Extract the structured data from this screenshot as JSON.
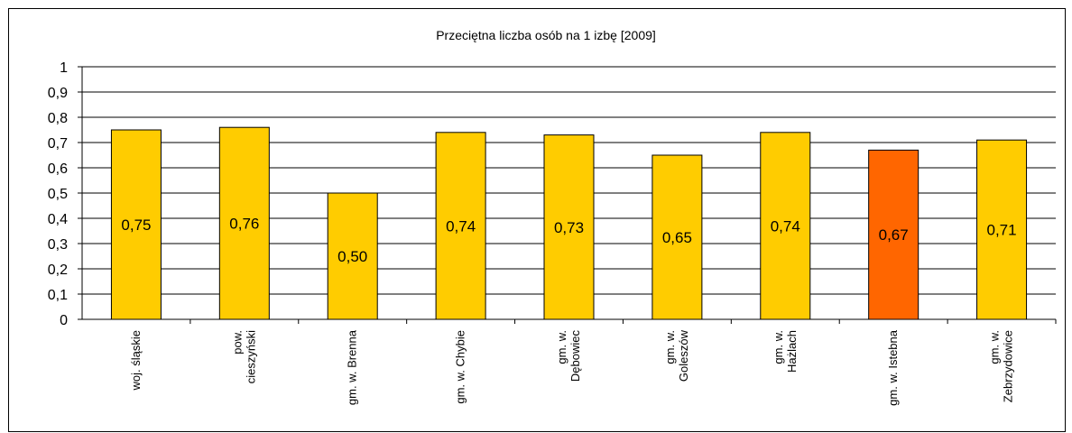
{
  "chart_data": {
    "type": "bar",
    "title": "Przeciętna liczba osób na 1 izbę [2009]",
    "xlabel": "",
    "ylabel": "",
    "ylim": [
      0,
      1
    ],
    "yticks": [
      "0",
      "0,1",
      "0,2",
      "0,3",
      "0,4",
      "0,5",
      "0,6",
      "0,7",
      "0,8",
      "0,9",
      "1"
    ],
    "grid": true,
    "categories": [
      [
        "woj. śląskie"
      ],
      [
        "pow.",
        "cieszyński"
      ],
      [
        "gm. w. Brenna"
      ],
      [
        "gm. w. Chybie"
      ],
      [
        "gm. w.",
        "Dębowiec"
      ],
      [
        "gm. w.",
        "Goleszów"
      ],
      [
        "gm. w.",
        "Hażlach"
      ],
      [
        "gm. w. Istebna"
      ],
      [
        "gm. w.",
        "Zebrzydowice"
      ]
    ],
    "values": [
      0.75,
      0.76,
      0.5,
      0.74,
      0.73,
      0.65,
      0.74,
      0.67,
      0.71
    ],
    "value_labels": [
      "0,75",
      "0,76",
      "0,50",
      "0,74",
      "0,73",
      "0,65",
      "0,74",
      "0,67",
      "0,71"
    ],
    "colors": {
      "bar": "#FFCC00",
      "highlight": "#FF6600",
      "bar_border": "#000000",
      "grid": "#000000"
    },
    "highlight_index": 7
  }
}
